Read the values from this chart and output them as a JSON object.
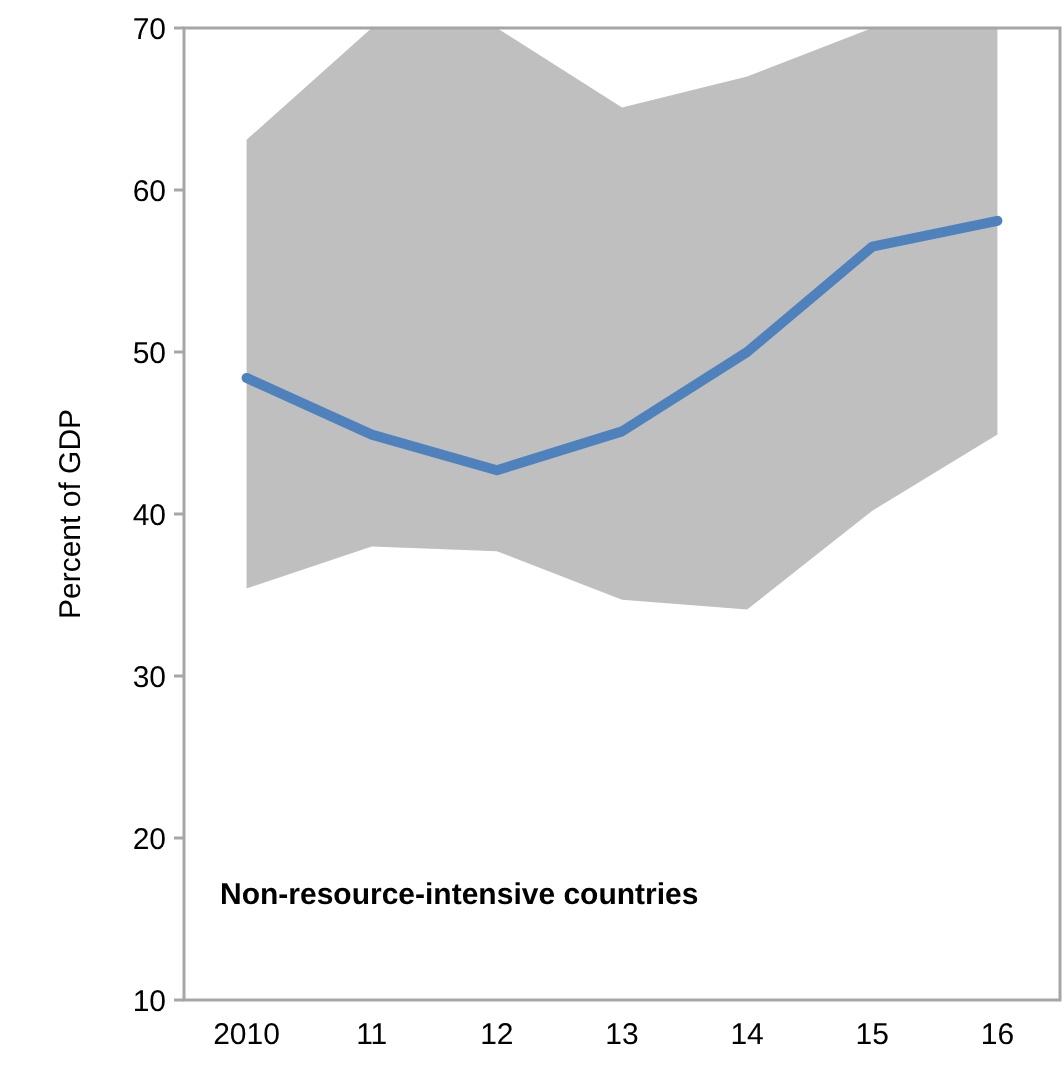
{
  "chart_data": {
    "type": "line",
    "ylabel": "Percent of GDP",
    "categories": [
      "2010",
      "11",
      "12",
      "13",
      "14",
      "15",
      "16"
    ],
    "series": [
      {
        "color": "#4f81bd",
        "values": [
          48.4,
          44.9,
          42.7,
          45.1,
          50.0,
          56.5,
          58.1
        ],
        "lower": [
          35.4,
          38.0,
          37.7,
          34.7,
          34.1,
          40.2,
          44.9
        ],
        "upper": [
          63.1,
          70,
          70,
          65.1,
          67.0,
          70,
          70
        ]
      }
    ],
    "ylim": [
      10,
      70
    ],
    "yticks": [
      10,
      20,
      30,
      40,
      50,
      60,
      70
    ],
    "grid": false,
    "annotations": [
      "Non-resource-intensive countries"
    ]
  }
}
